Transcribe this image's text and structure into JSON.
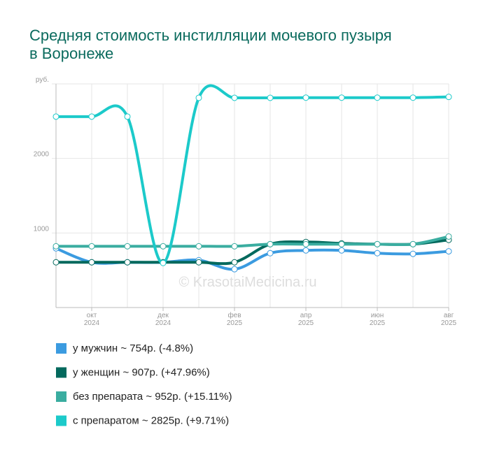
{
  "chart_data": {
    "type": "line",
    "title": "Средняя стоимость инстилляции мочевого пузыря в Воронеже",
    "watermark": "© KrasotaiMedicina.ru",
    "categories": [
      null,
      "окт 2024",
      null,
      "дек 2024",
      null,
      "фев 2025",
      null,
      "апр 2025",
      null,
      "июн 2025",
      null,
      "авг 2025"
    ],
    "ylim": [
      0,
      3000
    ],
    "yticks": [
      1000,
      2000,
      {
        "value": 3000,
        "label": "руб."
      }
    ],
    "grid": true,
    "series": [
      {
        "name": "у мужчин ~ 754р. (-4.8%)",
        "color": "#3b9be0",
        "values": [
          794,
          607,
          607,
          607,
          635,
          514,
          729,
          766,
          766,
          729,
          720,
          754
        ]
      },
      {
        "name": "у женщин ~ 907р. (+47.96%)",
        "color": "#03695d",
        "values": [
          607,
          607,
          607,
          607,
          607,
          607,
          850,
          879,
          860,
          850,
          850,
          907
        ]
      },
      {
        "name": "без препарата ~ 952р. (+15.11%)",
        "color": "#3aada0",
        "values": [
          822,
          822,
          822,
          822,
          822,
          822,
          850,
          850,
          850,
          850,
          850,
          952
        ]
      },
      {
        "name": "с препаратом ~ 2825р. (+9.71%)",
        "color": "#1ccaca",
        "values": [
          2561,
          2561,
          2561,
          598,
          2813,
          2813,
          2813,
          2815,
          2815,
          2815,
          2815,
          2825
        ]
      }
    ]
  }
}
